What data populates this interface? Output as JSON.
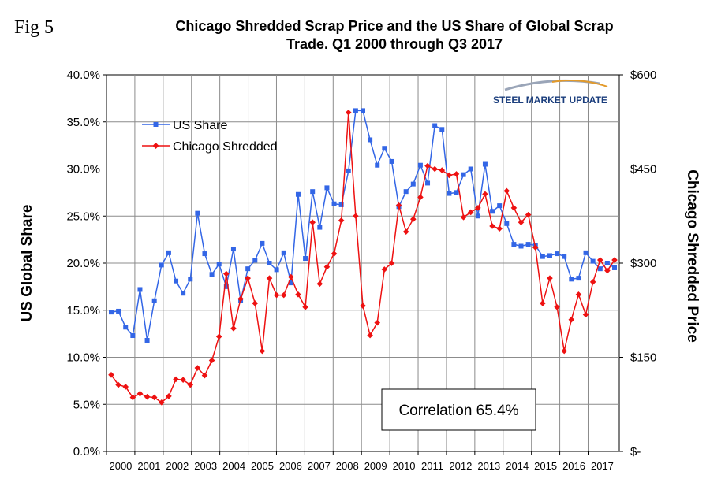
{
  "fig_label": "Fig 5",
  "title_line1": "Chicago Shredded Scrap Price and the US Share of Global Scrap",
  "title_line2": "Trade. Q1 2000 through Q3 2017",
  "logo": {
    "text": "STEEL MARKET UPDATE",
    "color": "#1a3d7c"
  },
  "correlation_label": "Correlation 65.4%",
  "chart_data": {
    "type": "line",
    "ylabel_left": "US Global Share",
    "ylabel_right": "Chicago Shredded Price",
    "ylim_left": [
      0,
      40
    ],
    "ylim_right": [
      0,
      600
    ],
    "left_ticks": [
      "0.0%",
      "5.0%",
      "10.0%",
      "15.0%",
      "20.0%",
      "25.0%",
      "30.0%",
      "35.0%",
      "40.0%"
    ],
    "right_ticks": [
      "$-",
      "$150",
      "$300",
      "$450",
      "$600"
    ],
    "x_tick_labels": [
      "2000",
      "2001",
      "2002",
      "2003",
      "2004",
      "2005",
      "2006",
      "2007",
      "2008",
      "2009",
      "2010",
      "2011",
      "2012",
      "2013",
      "2014",
      "2015",
      "2016",
      "2017"
    ],
    "grid": true,
    "legend_position": "top-left",
    "series": [
      {
        "name": "US  Share",
        "axis": "left",
        "color": "#3366e6",
        "marker": "square",
        "values": [
          14.8,
          14.9,
          13.2,
          12.3,
          17.2,
          11.8,
          16.0,
          19.8,
          21.1,
          18.1,
          16.8,
          18.3,
          25.3,
          21.0,
          18.8,
          19.9,
          17.5,
          21.5,
          16.0,
          19.4,
          20.3,
          22.1,
          20.0,
          19.3,
          21.1,
          17.9,
          27.3,
          20.5,
          27.6,
          23.8,
          28.0,
          26.3,
          26.2,
          29.8,
          36.2,
          36.2,
          33.1,
          30.4,
          32.2,
          30.8,
          26.0,
          27.6,
          28.4,
          30.4,
          28.5,
          34.6,
          34.2,
          27.4,
          27.5,
          29.4,
          30.0,
          25.0,
          30.5,
          25.5,
          26.1,
          24.2,
          22.0,
          21.8,
          22.0,
          21.9,
          20.7,
          20.8,
          21.0,
          20.7,
          18.3,
          18.4,
          21.1,
          20.2,
          19.4,
          20.0,
          19.5
        ]
      },
      {
        "name": "Chicago Shredded",
        "axis": "right",
        "color": "#ee1111",
        "marker": "diamond",
        "values": [
          122,
          106,
          103,
          86,
          92,
          87,
          86,
          78,
          88,
          115,
          114,
          106,
          133,
          121,
          145,
          183,
          283,
          196,
          243,
          276,
          236,
          160,
          276,
          249,
          249,
          278,
          250,
          230,
          365,
          267,
          294,
          315,
          368,
          540,
          375,
          232,
          185,
          205,
          290,
          300,
          392,
          350,
          370,
          405,
          455,
          450,
          448,
          440,
          442,
          373,
          381,
          388,
          410,
          359,
          355,
          415,
          388,
          365,
          377,
          325,
          236,
          276,
          230,
          160,
          210,
          250,
          218,
          270,
          305,
          288,
          305
        ]
      }
    ]
  }
}
